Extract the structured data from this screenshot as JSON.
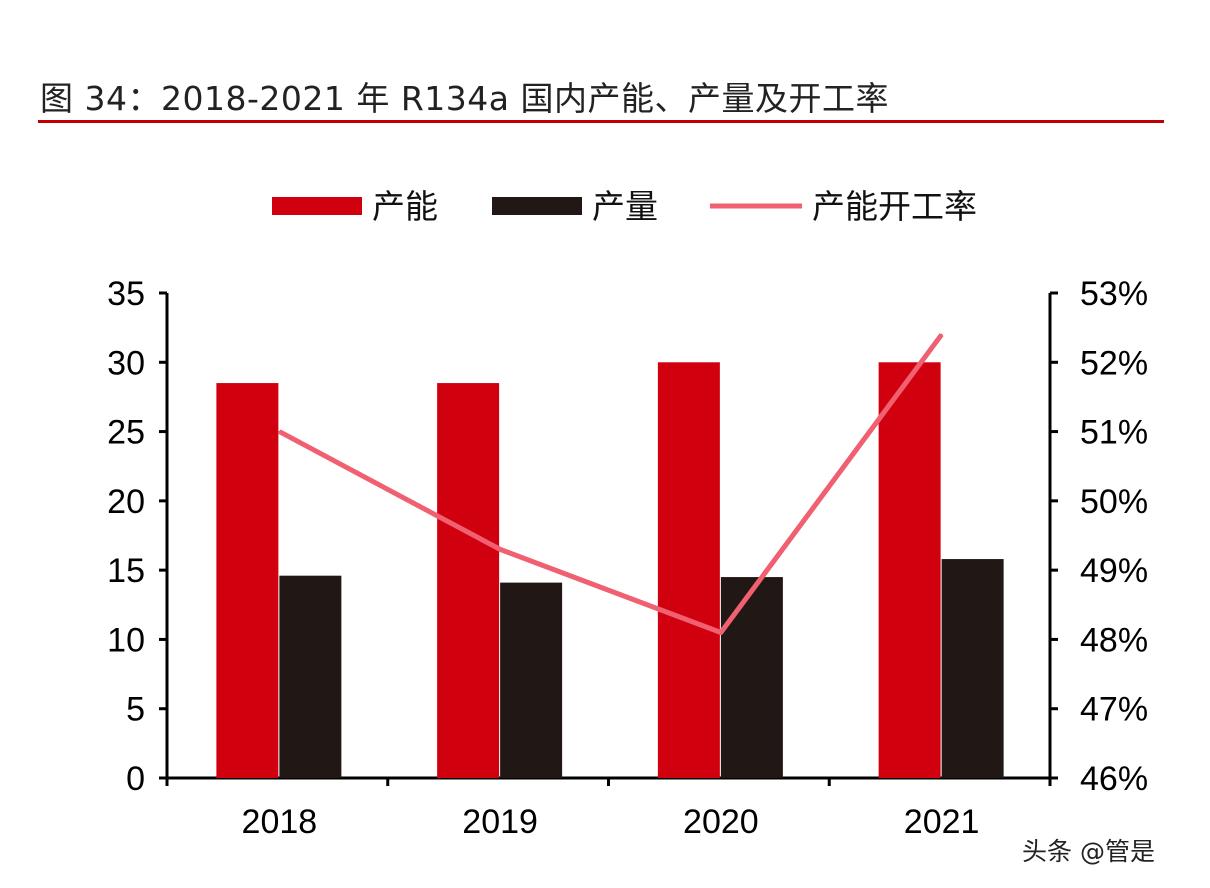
{
  "title": "图 34：2018-2021 年 R134a 国内产能、产量及开工率",
  "watermark": "头条 @管是",
  "chart_data": {
    "type": "bar",
    "categories": [
      "2018",
      "2019",
      "2020",
      "2021"
    ],
    "series": [
      {
        "name": "产能",
        "type": "bar",
        "axis": "left",
        "color": "#d0000f",
        "values": [
          28.5,
          28.5,
          30.0,
          30.0
        ]
      },
      {
        "name": "产量",
        "type": "bar",
        "axis": "left",
        "color": "#211714",
        "values": [
          14.6,
          14.1,
          14.5,
          15.8
        ]
      },
      {
        "name": "产能开工率",
        "type": "line",
        "axis": "right",
        "color": "#f06070",
        "values": [
          51.0,
          49.3,
          48.1,
          52.4
        ]
      }
    ],
    "y_left": {
      "lim": [
        0,
        35
      ],
      "ticks": [
        "0",
        "5",
        "10",
        "15",
        "20",
        "25",
        "30",
        "35"
      ]
    },
    "y_right": {
      "lim": [
        46,
        53
      ],
      "ticks": [
        "46%",
        "47%",
        "48%",
        "49%",
        "50%",
        "51%",
        "52%",
        "53%"
      ]
    },
    "legend": "top",
    "grid": false
  }
}
